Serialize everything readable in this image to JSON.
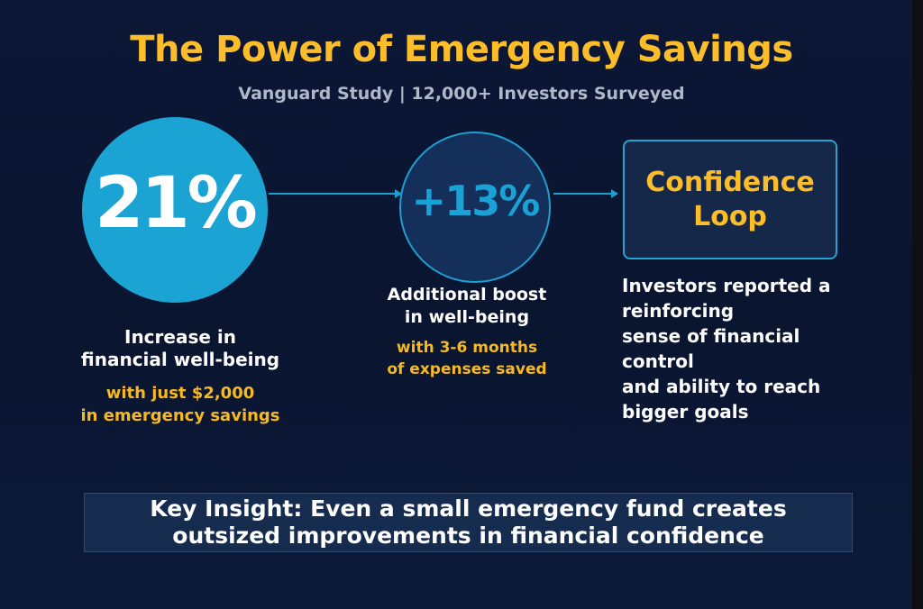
{
  "header": {
    "title": "The Power of Emergency Savings",
    "subtitle": "Vanguard Study | 12,000+ Investors Surveyed"
  },
  "steps": [
    {
      "value": "21%",
      "description_lines": [
        "Increase in",
        "financial well-being"
      ],
      "highlight_lines": [
        "with just $2,000",
        "in emergency savings"
      ]
    },
    {
      "value": "+13%",
      "description_lines": [
        "Additional boost",
        "in well-being"
      ],
      "highlight_lines": [
        "with 3-6 months",
        "of expenses saved"
      ]
    },
    {
      "label_lines": [
        "Confidence",
        "Loop"
      ],
      "description_lines": [
        "Investors reported a",
        "reinforcing",
        "sense of financial",
        "control",
        "and ability to reach",
        "bigger goals"
      ]
    }
  ],
  "insight": {
    "lines": [
      "Key Insight: Even a small emergency fund creates",
      "outsized improvements in financial confidence"
    ]
  },
  "colors": {
    "background": "#0a1631",
    "accent_gold": "#fbbd29",
    "accent_blue": "#1ba4d3",
    "text": "#ffffff"
  }
}
